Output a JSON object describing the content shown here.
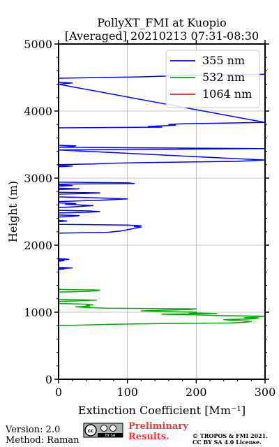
{
  "chart_data": {
    "type": "line",
    "title": "PollyXT_FMI at Kuopio",
    "subtitle": "[Averaged] 20210213 07:31-08:30",
    "xlabel": "Extinction Coefficient [Mm⁻¹]",
    "ylabel": "Height (m)",
    "xlim": [
      0,
      300
    ],
    "ylim": [
      0,
      5000
    ],
    "xticks": [
      "0",
      "100",
      "200",
      "300"
    ],
    "yticks": [
      "0",
      "1000",
      "2000",
      "3000",
      "4000",
      "5000"
    ],
    "grid": true,
    "legend_position": "top-right",
    "series": [
      {
        "name": "355 nm",
        "color": "#0000ff",
        "points": [
          [
            0,
            1640
          ],
          [
            8,
            1645
          ],
          [
            0,
            1650
          ],
          [
            20,
            1660
          ],
          [
            0,
            1670
          ],
          [
            0,
            1760
          ],
          [
            8,
            1770
          ],
          [
            0,
            1780
          ],
          [
            15,
            1790
          ],
          [
            0,
            1800
          ],
          [
            0,
            2180
          ],
          [
            70,
            2190
          ],
          [
            80,
            2200
          ],
          [
            90,
            2210
          ],
          [
            95,
            2220
          ],
          [
            100,
            2230
          ],
          [
            105,
            2240
          ],
          [
            110,
            2250
          ],
          [
            115,
            2260
          ],
          [
            120,
            2270
          ],
          [
            110,
            2280
          ],
          [
            120,
            2290
          ],
          [
            100,
            2300
          ],
          [
            0,
            2310
          ],
          [
            0,
            2350
          ],
          [
            12,
            2360
          ],
          [
            0,
            2370
          ],
          [
            0,
            2420
          ],
          [
            20,
            2430
          ],
          [
            30,
            2440
          ],
          [
            0,
            2450
          ],
          [
            0,
            2480
          ],
          [
            40,
            2490
          ],
          [
            60,
            2500
          ],
          [
            45,
            2510
          ],
          [
            0,
            2520
          ],
          [
            0,
            2560
          ],
          [
            20,
            2570
          ],
          [
            35,
            2580
          ],
          [
            50,
            2590
          ],
          [
            30,
            2600
          ],
          [
            10,
            2610
          ],
          [
            25,
            2620
          ],
          [
            0,
            2630
          ],
          [
            0,
            2650
          ],
          [
            30,
            2660
          ],
          [
            60,
            2670
          ],
          [
            80,
            2680
          ],
          [
            100,
            2690
          ],
          [
            70,
            2700
          ],
          [
            40,
            2710
          ],
          [
            0,
            2720
          ],
          [
            0,
            2760
          ],
          [
            40,
            2770
          ],
          [
            60,
            2780
          ],
          [
            0,
            2790
          ],
          [
            0,
            2830
          ],
          [
            30,
            2840
          ],
          [
            0,
            2850
          ],
          [
            0,
            2880
          ],
          [
            20,
            2890
          ],
          [
            0,
            2900
          ],
          [
            0,
            2910
          ],
          [
            110,
            2920
          ],
          [
            100,
            2930
          ],
          [
            0,
            2940
          ],
          [
            0,
            3170
          ],
          [
            20,
            3180
          ],
          [
            0,
            3190
          ],
          [
            0,
            3200
          ],
          [
            50,
            3210
          ],
          [
            70,
            3220
          ],
          [
            120,
            3230
          ],
          [
            180,
            3240
          ],
          [
            260,
            3250
          ],
          [
            300,
            3270
          ],
          [
            0,
            3420
          ],
          [
            300,
            3440
          ],
          [
            0,
            3460
          ],
          [
            20,
            3470
          ],
          [
            25,
            3480
          ],
          [
            0,
            3490
          ],
          [
            0,
            3750
          ],
          [
            150,
            3760
          ],
          [
            130,
            3770
          ],
          [
            150,
            3780
          ],
          [
            170,
            3790
          ],
          [
            160,
            3800
          ],
          [
            180,
            3810
          ],
          [
            300,
            3830
          ],
          [
            0,
            4400
          ],
          [
            10,
            4410
          ],
          [
            20,
            4420
          ],
          [
            0,
            4430
          ],
          [
            0,
            4490
          ],
          [
            60,
            4500
          ],
          [
            120,
            4510
          ],
          [
            150,
            4520
          ],
          [
            190,
            4530
          ],
          [
            300,
            4550
          ]
        ]
      },
      {
        "name": "532 nm",
        "color": "#00aa00",
        "points": [
          [
            0,
            800
          ],
          [
            40,
            810
          ],
          [
            80,
            820
          ],
          [
            150,
            830
          ],
          [
            250,
            840
          ],
          [
            270,
            850
          ],
          [
            280,
            860
          ],
          [
            270,
            870
          ],
          [
            250,
            880
          ],
          [
            240,
            890
          ],
          [
            280,
            900
          ],
          [
            290,
            910
          ],
          [
            270,
            920
          ],
          [
            290,
            930
          ],
          [
            300,
            940
          ],
          [
            230,
            950
          ],
          [
            200,
            960
          ],
          [
            150,
            970
          ],
          [
            230,
            980
          ],
          [
            190,
            990
          ],
          [
            200,
            1000
          ],
          [
            150,
            1010
          ],
          [
            120,
            1020
          ],
          [
            150,
            1030
          ],
          [
            190,
            1040
          ],
          [
            200,
            1050
          ],
          [
            70,
            1060
          ],
          [
            40,
            1070
          ],
          [
            25,
            1080
          ],
          [
            45,
            1090
          ],
          [
            40,
            1100
          ],
          [
            50,
            1110
          ],
          [
            40,
            1120
          ],
          [
            0,
            1130
          ],
          [
            0,
            1160
          ],
          [
            30,
            1170
          ],
          [
            55,
            1180
          ],
          [
            0,
            1190
          ],
          [
            0,
            1300
          ],
          [
            40,
            1310
          ],
          [
            55,
            1320
          ],
          [
            60,
            1330
          ],
          [
            0,
            1340
          ]
        ]
      },
      {
        "name": "1064 nm",
        "color": "#dd2222",
        "points": []
      }
    ]
  },
  "footer": {
    "version": "Version: 2.0",
    "method": "Method: Raman",
    "license_badge_label": "BY SA",
    "preliminary_line1": "Preliminary",
    "preliminary_line2": "Results.",
    "copyright_line1": "© TROPOS & FMI 2021.",
    "copyright_line2": "CC BY SA 4.0 License."
  }
}
